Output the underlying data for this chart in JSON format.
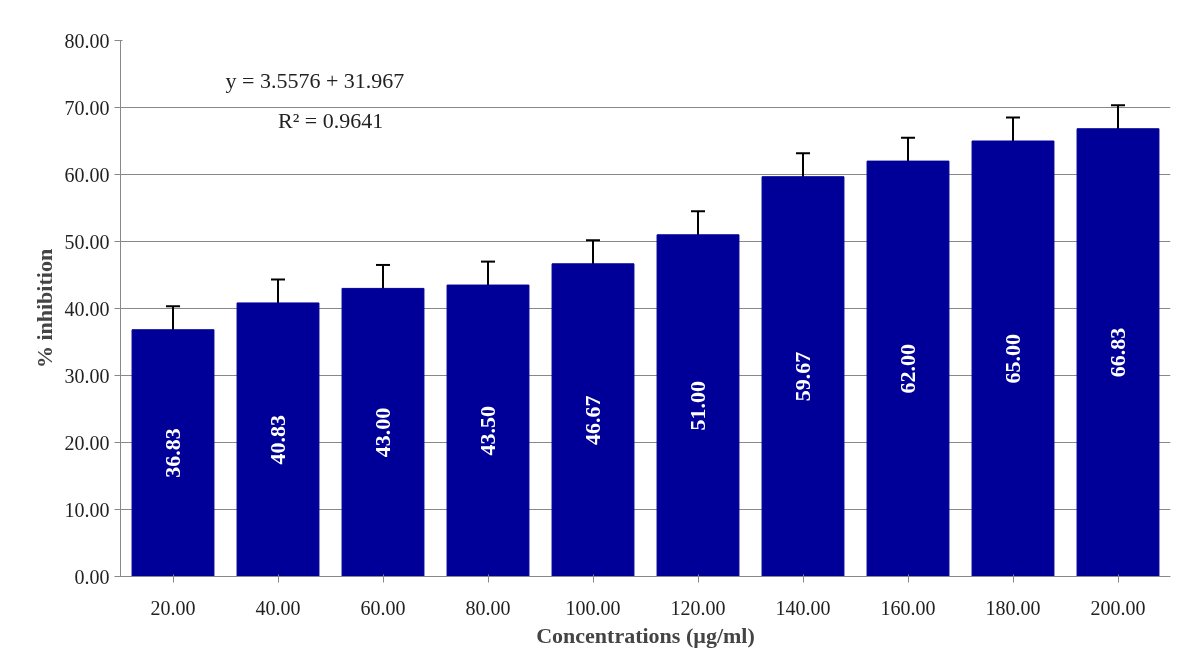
{
  "chart_data": {
    "type": "bar",
    "xlabel": "Concentrations (µg/ml)",
    "ylabel": "% inhibition",
    "categories": [
      "20.00",
      "40.00",
      "60.00",
      "80.00",
      "100.00",
      "120.00",
      "140.00",
      "160.00",
      "180.00",
      "200.00"
    ],
    "values": [
      36.83,
      40.83,
      43.0,
      43.5,
      46.67,
      51.0,
      59.67,
      62.0,
      65.0,
      66.83
    ],
    "errors": [
      3.5,
      3.5,
      3.5,
      3.5,
      3.5,
      3.5,
      3.5,
      3.5,
      3.5,
      3.5
    ],
    "color": "#000099",
    "value_labels": [
      "36.83",
      "40.83",
      "43.00",
      "43.50",
      "46.67",
      "51.00",
      "59.67",
      "62.00",
      "65.00",
      "66.83"
    ],
    "annotations": [
      "y = 3.5576 + 31.967",
      "R² = 0.9641"
    ],
    "ylim": [
      0,
      80
    ],
    "yticks": [
      {
        "value": 0,
        "label": "0.00"
      },
      {
        "value": 10,
        "label": "10.00"
      },
      {
        "value": 20,
        "label": "20.00"
      },
      {
        "value": 30,
        "label": "30.00"
      },
      {
        "value": 40,
        "label": "40.00"
      },
      {
        "value": 50,
        "label": "50.00"
      },
      {
        "value": 60,
        "label": "60.00"
      },
      {
        "value": 70,
        "label": "70.00"
      },
      {
        "value": 80,
        "label": "80.00"
      }
    ],
    "grid": "y"
  }
}
